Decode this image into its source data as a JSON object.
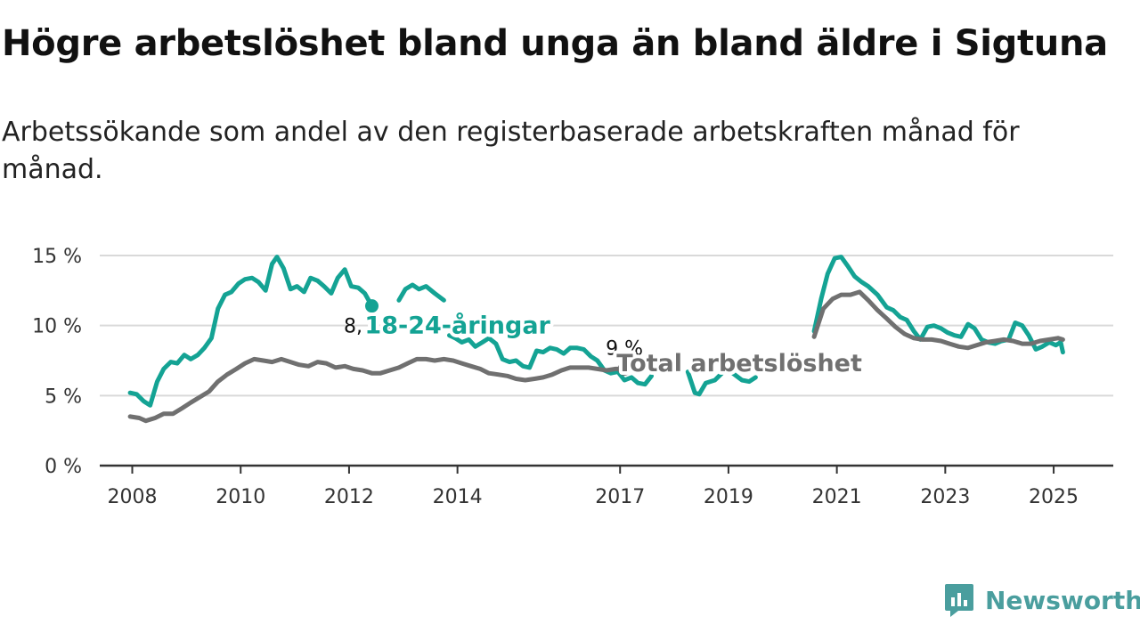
{
  "title": "Högre arbetslöshet bland unga än bland äldre i Sigtuna",
  "subtitle": "Arbetssökande som andel av den registerbaserade arbetskraften månad för månad.",
  "logo": {
    "text": "Newsworthy",
    "icon": "newsworthy-logo-icon",
    "color": "#4a9e9e"
  },
  "chart_data": {
    "type": "line",
    "title": "Högre arbetslöshet bland unga än bland äldre i Sigtuna",
    "subtitle": "Arbetssökande som andel av den registerbaserade arbetskraften månad för månad.",
    "xlabel": "",
    "ylabel": "",
    "ylim": [
      0,
      15
    ],
    "xlim": [
      2007.4,
      2026.1
    ],
    "grid": true,
    "y_ticks": [
      {
        "value": 0,
        "label": "0 %"
      },
      {
        "value": 5,
        "label": "5 %"
      },
      {
        "value": 10,
        "label": "10 %"
      },
      {
        "value": 15,
        "label": "15 %"
      }
    ],
    "x_ticks": [
      {
        "value": 2008,
        "label": "2008"
      },
      {
        "value": 2010,
        "label": "2010"
      },
      {
        "value": 2012,
        "label": "2012"
      },
      {
        "value": 2014,
        "label": "2014"
      },
      {
        "value": 2017,
        "label": "2017"
      },
      {
        "value": 2019,
        "label": "2019"
      },
      {
        "value": 2021,
        "label": "2021"
      },
      {
        "value": 2023,
        "label": "2023"
      },
      {
        "value": 2025,
        "label": "2025"
      }
    ],
    "series": [
      {
        "name": "Total arbetslöshet",
        "color": "#707070",
        "end_label": "9 %",
        "points": [
          [
            2007.96,
            3.5
          ],
          [
            2008.13,
            3.4
          ],
          [
            2008.25,
            3.2
          ],
          [
            2008.42,
            3.4
          ],
          [
            2008.58,
            3.7
          ],
          [
            2008.75,
            3.7
          ],
          [
            2008.92,
            4.1
          ],
          [
            2009.08,
            4.5
          ],
          [
            2009.25,
            4.9
          ],
          [
            2009.42,
            5.3
          ],
          [
            2009.58,
            6.0
          ],
          [
            2009.75,
            6.5
          ],
          [
            2009.92,
            6.9
          ],
          [
            2010.08,
            7.3
          ],
          [
            2010.25,
            7.6
          ],
          [
            2010.42,
            7.5
          ],
          [
            2010.58,
            7.4
          ],
          [
            2010.75,
            7.6
          ],
          [
            2010.92,
            7.4
          ],
          [
            2011.08,
            7.2
          ],
          [
            2011.25,
            7.1
          ],
          [
            2011.42,
            7.4
          ],
          [
            2011.58,
            7.3
          ],
          [
            2011.75,
            7.0
          ],
          [
            2011.92,
            7.1
          ],
          [
            2012.08,
            6.9
          ],
          [
            2012.25,
            6.8
          ],
          [
            2012.42,
            6.6
          ],
          [
            2012.58,
            6.6
          ],
          [
            2012.75,
            6.8
          ],
          [
            2012.92,
            7.0
          ],
          [
            2013.08,
            7.3
          ],
          [
            2013.25,
            7.6
          ],
          [
            2013.42,
            7.6
          ],
          [
            2013.58,
            7.5
          ],
          [
            2013.75,
            7.6
          ],
          [
            2013.92,
            7.5
          ],
          [
            2014.08,
            7.3
          ],
          [
            2014.25,
            7.1
          ],
          [
            2014.42,
            6.9
          ],
          [
            2014.58,
            6.6
          ],
          [
            2014.75,
            6.5
          ],
          [
            2014.92,
            6.4
          ],
          [
            2015.08,
            6.2
          ],
          [
            2015.25,
            6.1
          ],
          [
            2015.42,
            6.2
          ],
          [
            2015.58,
            6.3
          ],
          [
            2015.75,
            6.5
          ],
          [
            2015.92,
            6.8
          ],
          [
            2016.08,
            7.0
          ],
          [
            2016.25,
            7.0
          ],
          [
            2016.42,
            7.0
          ],
          [
            2016.58,
            6.9
          ],
          [
            2016.75,
            6.8
          ],
          [
            2016.92,
            6.9
          ],
          [
            2017.08,
            6.9
          ]
        ]
      },
      {
        "name": "Total arbetslöshet",
        "color": "#707070",
        "end_label": "",
        "points": [
          [
            2020.58,
            9.2
          ],
          [
            2020.75,
            11.2
          ],
          [
            2020.92,
            11.9
          ],
          [
            2021.08,
            12.2
          ],
          [
            2021.25,
            12.2
          ],
          [
            2021.42,
            12.4
          ],
          [
            2021.58,
            11.8
          ],
          [
            2021.75,
            11.1
          ],
          [
            2021.92,
            10.5
          ],
          [
            2022.08,
            9.9
          ],
          [
            2022.25,
            9.4
          ],
          [
            2022.42,
            9.1
          ],
          [
            2022.58,
            9.0
          ],
          [
            2022.75,
            9.0
          ],
          [
            2022.92,
            8.9
          ],
          [
            2023.08,
            8.7
          ],
          [
            2023.25,
            8.5
          ],
          [
            2023.42,
            8.4
          ],
          [
            2023.58,
            8.6
          ],
          [
            2023.75,
            8.8
          ],
          [
            2023.92,
            8.9
          ],
          [
            2024.08,
            9.0
          ],
          [
            2024.25,
            8.9
          ],
          [
            2024.42,
            8.7
          ],
          [
            2024.58,
            8.7
          ],
          [
            2024.75,
            8.9
          ],
          [
            2024.92,
            9.0
          ],
          [
            2025.08,
            9.1
          ],
          [
            2025.17,
            9.0
          ]
        ]
      },
      {
        "name": "18-24-åringar",
        "color": "#14a394",
        "end_label": "8,1 %",
        "points": [
          [
            2007.96,
            5.2
          ],
          [
            2008.08,
            5.1
          ],
          [
            2008.21,
            4.6
          ],
          [
            2008.33,
            4.3
          ],
          [
            2008.46,
            6.0
          ],
          [
            2008.58,
            6.9
          ],
          [
            2008.71,
            7.4
          ],
          [
            2008.83,
            7.3
          ],
          [
            2008.96,
            7.9
          ],
          [
            2009.08,
            7.6
          ],
          [
            2009.21,
            7.9
          ],
          [
            2009.33,
            8.4
          ],
          [
            2009.46,
            9.1
          ],
          [
            2009.58,
            11.2
          ],
          [
            2009.71,
            12.2
          ],
          [
            2009.83,
            12.4
          ],
          [
            2009.96,
            13.0
          ],
          [
            2010.08,
            13.3
          ],
          [
            2010.21,
            13.4
          ],
          [
            2010.33,
            13.1
          ],
          [
            2010.46,
            12.5
          ],
          [
            2010.58,
            14.4
          ],
          [
            2010.67,
            14.9
          ],
          [
            2010.79,
            14.1
          ],
          [
            2010.92,
            12.6
          ],
          [
            2011.04,
            12.8
          ],
          [
            2011.17,
            12.4
          ],
          [
            2011.29,
            13.4
          ],
          [
            2011.42,
            13.2
          ],
          [
            2011.54,
            12.8
          ],
          [
            2011.67,
            12.3
          ],
          [
            2011.79,
            13.4
          ],
          [
            2011.92,
            14.0
          ],
          [
            2012.04,
            12.8
          ],
          [
            2012.17,
            12.7
          ],
          [
            2012.29,
            12.3
          ],
          [
            2012.42,
            11.4
          ]
        ]
      },
      {
        "name": "18-24-åringar",
        "color": "#14a394",
        "end_label": "",
        "points": [
          [
            2012.92,
            11.8
          ],
          [
            2013.04,
            12.6
          ],
          [
            2013.17,
            12.9
          ],
          [
            2013.29,
            12.6
          ],
          [
            2013.42,
            12.8
          ],
          [
            2013.58,
            12.3
          ],
          [
            2013.75,
            11.8
          ]
        ]
      },
      {
        "name": "18-24-åringar",
        "color": "#14a394",
        "end_label": "",
        "points": [
          [
            2013.85,
            9.3
          ],
          [
            2013.96,
            9.1
          ],
          [
            2014.08,
            8.8
          ],
          [
            2014.21,
            9.0
          ],
          [
            2014.33,
            8.5
          ],
          [
            2014.46,
            8.8
          ],
          [
            2014.58,
            9.1
          ],
          [
            2014.71,
            8.7
          ],
          [
            2014.83,
            7.6
          ],
          [
            2014.96,
            7.4
          ],
          [
            2015.08,
            7.5
          ],
          [
            2015.21,
            7.1
          ],
          [
            2015.33,
            7.0
          ],
          [
            2015.46,
            8.2
          ],
          [
            2015.58,
            8.1
          ],
          [
            2015.71,
            8.4
          ],
          [
            2015.83,
            8.3
          ],
          [
            2015.96,
            8.0
          ],
          [
            2016.08,
            8.4
          ],
          [
            2016.21,
            8.4
          ],
          [
            2016.33,
            8.3
          ],
          [
            2016.46,
            7.8
          ],
          [
            2016.58,
            7.5
          ],
          [
            2016.71,
            6.8
          ],
          [
            2016.83,
            6.6
          ],
          [
            2016.96,
            6.7
          ],
          [
            2017.08,
            6.1
          ],
          [
            2017.21,
            6.3
          ],
          [
            2017.33,
            5.9
          ],
          [
            2017.46,
            5.8
          ],
          [
            2017.58,
            6.4
          ]
        ]
      },
      {
        "name": "18-24-åringar",
        "color": "#14a394",
        "end_label": "",
        "points": [
          [
            2018.25,
            6.7
          ],
          [
            2018.38,
            5.2
          ],
          [
            2018.46,
            5.1
          ],
          [
            2018.58,
            5.9
          ],
          [
            2018.75,
            6.1
          ],
          [
            2018.88,
            6.6
          ]
        ]
      },
      {
        "name": "18-24-åringar",
        "color": "#14a394",
        "end_label": "",
        "points": [
          [
            2019.08,
            6.6
          ],
          [
            2019.25,
            6.1
          ],
          [
            2019.38,
            6.0
          ],
          [
            2019.5,
            6.3
          ]
        ]
      },
      {
        "name": "18-24-åringar",
        "color": "#14a394",
        "end_label": "",
        "points": [
          [
            2020.58,
            9.6
          ],
          [
            2020.71,
            11.9
          ],
          [
            2020.83,
            13.7
          ],
          [
            2020.96,
            14.8
          ],
          [
            2021.08,
            14.9
          ],
          [
            2021.21,
            14.2
          ],
          [
            2021.33,
            13.5
          ],
          [
            2021.46,
            13.1
          ],
          [
            2021.58,
            12.8
          ],
          [
            2021.75,
            12.2
          ],
          [
            2021.92,
            11.3
          ],
          [
            2022.04,
            11.1
          ],
          [
            2022.17,
            10.6
          ],
          [
            2022.29,
            10.4
          ],
          [
            2022.42,
            9.6
          ],
          [
            2022.54,
            9.0
          ],
          [
            2022.67,
            9.9
          ],
          [
            2022.79,
            10.0
          ],
          [
            2022.92,
            9.8
          ],
          [
            2023.04,
            9.5
          ],
          [
            2023.17,
            9.3
          ],
          [
            2023.29,
            9.2
          ],
          [
            2023.42,
            10.1
          ],
          [
            2023.54,
            9.8
          ],
          [
            2023.67,
            9.0
          ],
          [
            2023.79,
            8.8
          ],
          [
            2023.92,
            8.7
          ],
          [
            2024.04,
            8.9
          ],
          [
            2024.17,
            9.0
          ],
          [
            2024.29,
            10.2
          ],
          [
            2024.42,
            10.0
          ],
          [
            2024.54,
            9.3
          ],
          [
            2024.67,
            8.3
          ],
          [
            2024.79,
            8.5
          ],
          [
            2024.92,
            8.8
          ],
          [
            2025.04,
            8.6
          ],
          [
            2025.13,
            8.8
          ],
          [
            2025.17,
            8.1
          ]
        ]
      }
    ],
    "annotations": [
      {
        "text": "18-24-åringar",
        "series": "18-24-åringar",
        "x": 2014.0,
        "y": 10.0
      },
      {
        "text": "Total arbetslöshet",
        "series": "Total arbetslöshet",
        "x": 2019.2,
        "y": 7.3
      }
    ]
  }
}
